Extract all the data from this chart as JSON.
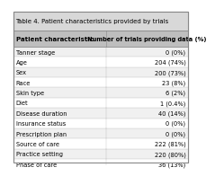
{
  "title": "Table 4. Patient characteristics provided by trials",
  "header": [
    "Patient characteristic",
    "Number of trials providing data (%)"
  ],
  "rows": [
    [
      "Tanner stage",
      "0 (0%)"
    ],
    [
      "Age",
      "204 (74%)"
    ],
    [
      "Sex",
      "200 (73%)"
    ],
    [
      "Race",
      "23 (8%)"
    ],
    [
      "Skin type",
      "6 (2%)"
    ],
    [
      "Diet",
      "1 (0.4%)"
    ],
    [
      "Disease duration",
      "40 (14%)"
    ],
    [
      "Insurance status",
      "0 (0%)"
    ],
    [
      "Prescription plan",
      "0 (0%)"
    ],
    [
      "Source of care",
      "222 (81%)"
    ],
    [
      "Practice setting",
      "220 (80%)"
    ],
    [
      "Phase of care",
      "36 (13%)"
    ]
  ],
  "header_bg": "#bebebe",
  "row_bg_even": "#f0f0f0",
  "row_bg_odd": "#ffffff",
  "title_bg": "#d8d8d8",
  "outer_bg": "#ffffff",
  "border_color": "#888888",
  "text_color": "#000000",
  "title_fontsize": 5.0,
  "header_fontsize": 5.0,
  "row_fontsize": 4.8,
  "col_split": 0.53,
  "fig_bg": "#ffffff"
}
